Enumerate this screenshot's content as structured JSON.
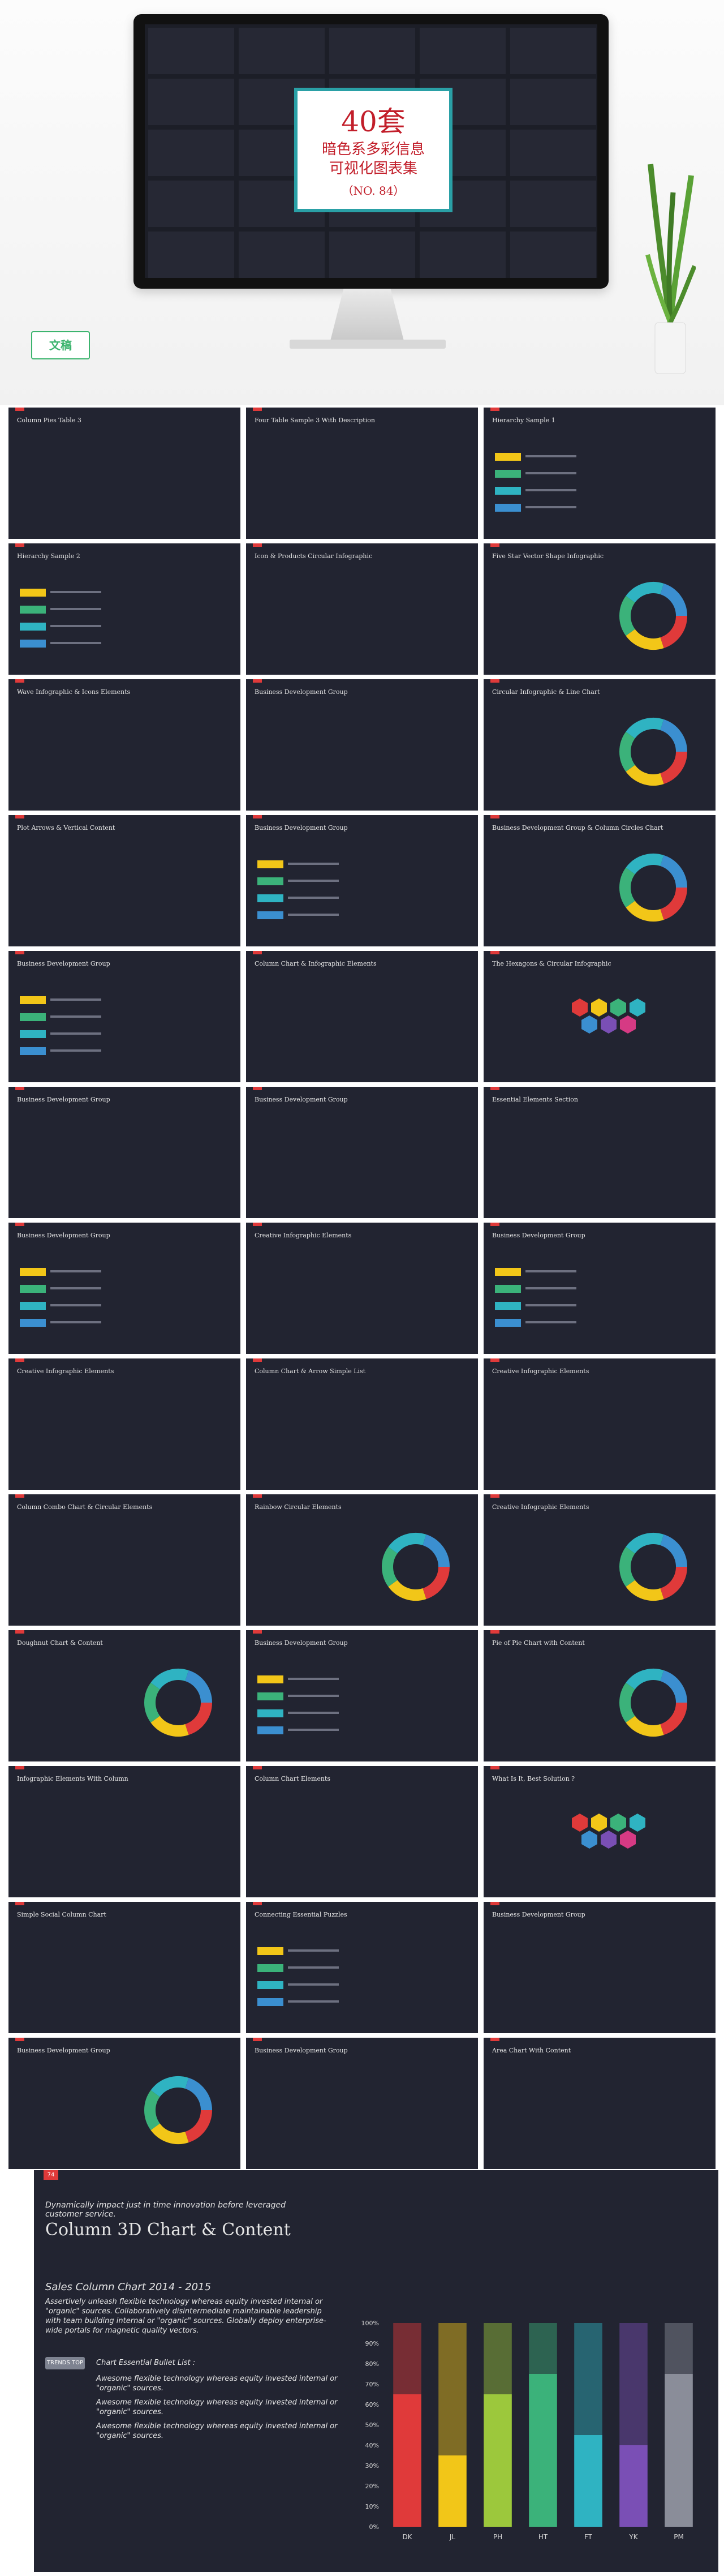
{
  "hero": {
    "title_line1": "40套",
    "title_line2": "暗色系多彩信息",
    "title_line3": "可视化图表集",
    "title_line4": "（NO. 84）",
    "brand": "文稿"
  },
  "colors": {
    "background": "#222431",
    "red": "#e03a3a",
    "yellow": "#f2c618",
    "green": "#3bb27a",
    "teal": "#2fb3c2",
    "blue": "#3b8fd0",
    "purple": "#7a4fb5",
    "pink": "#d63a84",
    "lime": "#9cc83c"
  },
  "slides": [
    {
      "title": "Column Pies Table 3"
    },
    {
      "title": "Four Table Sample 3 With Description"
    },
    {
      "title": "Hierarchy Sample 1"
    },
    {
      "title": "Hierarchy Sample 2"
    },
    {
      "title": "Icon & Products Circular Infographic"
    },
    {
      "title": "Five Star Vector Shape Infographic"
    },
    {
      "title": "Wave Infographic & Icons Elements"
    },
    {
      "title": "Business Development Group"
    },
    {
      "title": "Circular Infographic & Line Chart"
    },
    {
      "title": "Plot Arrows & Vertical Content"
    },
    {
      "title": "Business Development Group"
    },
    {
      "title": "Business Development Group & Column Circles Chart"
    },
    {
      "title": "Business Development Group"
    },
    {
      "title": "Column Chart & Infographic Elements"
    },
    {
      "title": "The Hexagons & Circular Infographic"
    },
    {
      "title": "Business Development Group"
    },
    {
      "title": "Business Development Group"
    },
    {
      "title": "Essential Elements Section"
    },
    {
      "title": "Business Development Group"
    },
    {
      "title": "Creative Infographic Elements"
    },
    {
      "title": "Business Development Group"
    },
    {
      "title": "Creative Infographic Elements"
    },
    {
      "title": "Column Chart & Arrow Simple List"
    },
    {
      "title": "Creative Infographic Elements"
    },
    {
      "title": "Column Combo Chart & Circular Elements"
    },
    {
      "title": "Rainbow Circular Elements"
    },
    {
      "title": "Creative Infographic Elements"
    },
    {
      "title": "Doughnut Chart & Content"
    },
    {
      "title": "Business Development Group"
    },
    {
      "title": "Pie of Pie Chart with Content"
    },
    {
      "title": "Infographic Elements With Column"
    },
    {
      "title": "Column Chart Elements"
    },
    {
      "title": "What Is It, Best Solution ?"
    },
    {
      "title": "Simple Social Column Chart"
    },
    {
      "title": "Connecting Essential Puzzles"
    },
    {
      "title": "Business Development Group"
    },
    {
      "title": "Business Development Group"
    },
    {
      "title": "Business Development Group"
    },
    {
      "title": "Area Chart With Content"
    }
  ],
  "feature": {
    "tag": "74",
    "intro": "Dynamically impact just in time innovation before leveraged customer service.",
    "title": "Column 3D Chart & Content",
    "subtitle": "Sales Column Chart 2014 - 2015",
    "paragraph": "Assertively unleash flexible technology whereas equity invested internal or \"organic\" sources. Collaboratively disintermediate maintainable leadership with team building internal or \"organic\" sources. Globally deploy enterprise-wide portals for magnetic quality vectors.",
    "button": "TRENDS TOP",
    "list_title": "Chart Essential Bullet List :",
    "bullets": [
      "Awesome flexible technology whereas equity invested internal or \"organic\" sources.",
      "Awesome flexible technology whereas equity invested internal or \"organic\" sources.",
      "Awesome flexible technology whereas equity invested internal or \"organic\" sources."
    ]
  },
  "chart_data": {
    "type": "bar",
    "title": "",
    "categories": [
      "DK",
      "JL",
      "PH",
      "HT",
      "FT",
      "YK",
      "PM"
    ],
    "series": [
      {
        "values": [
          65,
          35,
          65,
          75,
          45,
          40,
          75
        ]
      },
      {
        "values": [
          35,
          65,
          35,
          25,
          55,
          60,
          25
        ]
      }
    ],
    "stacked": true,
    "yaxis_labels": [
      "0%",
      "10%",
      "20%",
      "30%",
      "40%",
      "50%",
      "60%",
      "70%",
      "80%",
      "90%",
      "100%"
    ],
    "ylim": [
      0,
      100
    ],
    "bar_colors": [
      "#e03a3a",
      "#f2c618",
      "#9cc83c",
      "#3bb27a",
      "#2fb3c2",
      "#7a4fb5",
      "#8a8d99"
    ],
    "grid": false
  }
}
